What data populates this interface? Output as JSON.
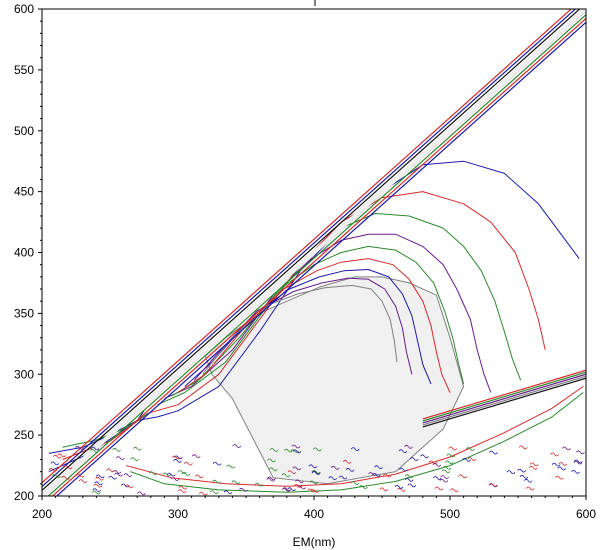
{
  "chart_data": {
    "type": "contour",
    "title": "",
    "xlabel": "EM(nm)",
    "ylabel": "",
    "xlim": [
      200,
      600
    ],
    "ylim": [
      200,
      600
    ],
    "x_ticks": [
      200,
      300,
      400,
      500,
      600
    ],
    "y_ticks": [
      200,
      250,
      300,
      350,
      400,
      450,
      500,
      550,
      600
    ],
    "grid": false,
    "legend": "none",
    "colors": {
      "background": "#ffffff",
      "fill": "#f0f0f0",
      "contour_colors": [
        "#1a1aa8",
        "#d42a2a",
        "#2a8a2a",
        "#6a1a8a",
        "#808080",
        "#111111"
      ]
    },
    "features": {
      "scatter_band": {
        "from": [
          200,
          200
        ],
        "to": [
          600,
          600
        ]
      },
      "second_order_band": {
        "from": [
          480,
          260
        ],
        "to": [
          600,
          300
        ]
      },
      "peak_region_center": [
        430,
        310
      ]
    },
    "contours": [
      {
        "color": "#1a1aa8",
        "level": 1,
        "points": [
          [
            205,
            220
          ],
          [
            235,
            235
          ],
          [
            270,
            262
          ],
          [
            285,
            265
          ],
          [
            300,
            270
          ],
          [
            330,
            290
          ],
          [
            360,
            335
          ],
          [
            390,
            385
          ],
          [
            420,
            420
          ],
          [
            450,
            450
          ],
          [
            480,
            472
          ],
          [
            510,
            475
          ],
          [
            540,
            465
          ],
          [
            565,
            440
          ],
          [
            585,
            410
          ],
          [
            595,
            395
          ]
        ]
      },
      {
        "color": "#d42a2a",
        "level": 2,
        "points": [
          [
            215,
            230
          ],
          [
            250,
            245
          ],
          [
            278,
            268
          ],
          [
            300,
            275
          ],
          [
            330,
            300
          ],
          [
            360,
            345
          ],
          [
            390,
            390
          ],
          [
            420,
            425
          ],
          [
            450,
            445
          ],
          [
            480,
            450
          ],
          [
            510,
            440
          ],
          [
            530,
            425
          ],
          [
            548,
            400
          ],
          [
            558,
            370
          ],
          [
            565,
            345
          ],
          [
            570,
            320
          ]
        ]
      },
      {
        "color": "#2a8a2a",
        "level": 3,
        "points": [
          [
            285,
            275
          ],
          [
            305,
            285
          ],
          [
            335,
            310
          ],
          [
            365,
            355
          ],
          [
            395,
            395
          ],
          [
            420,
            420
          ],
          [
            445,
            432
          ],
          [
            470,
            430
          ],
          [
            495,
            420
          ],
          [
            510,
            405
          ],
          [
            523,
            385
          ],
          [
            533,
            360
          ],
          [
            540,
            335
          ],
          [
            546,
            312
          ],
          [
            552,
            295
          ]
        ]
      },
      {
        "color": "#6a1a8a",
        "level": 4,
        "points": [
          [
            290,
            280
          ],
          [
            310,
            290
          ],
          [
            340,
            320
          ],
          [
            370,
            365
          ],
          [
            398,
            395
          ],
          [
            420,
            410
          ],
          [
            440,
            415
          ],
          [
            460,
            415
          ],
          [
            480,
            405
          ],
          [
            495,
            390
          ],
          [
            505,
            370
          ],
          [
            515,
            345
          ],
          [
            520,
            320
          ],
          [
            525,
            300
          ],
          [
            530,
            285
          ]
        ]
      },
      {
        "color": "#2a8a2a",
        "level": 5,
        "points": [
          [
            295,
            282
          ],
          [
            315,
            295
          ],
          [
            345,
            330
          ],
          [
            375,
            370
          ],
          [
            400,
            390
          ],
          [
            420,
            400
          ],
          [
            440,
            405
          ],
          [
            460,
            402
          ],
          [
            475,
            392
          ],
          [
            488,
            375
          ],
          [
            496,
            352
          ],
          [
            502,
            330
          ],
          [
            506,
            310
          ],
          [
            510,
            292
          ]
        ]
      },
      {
        "color": "#d42a2a",
        "level": 6,
        "points": [
          [
            300,
            285
          ],
          [
            320,
            300
          ],
          [
            350,
            340
          ],
          [
            378,
            370
          ],
          [
            402,
            385
          ],
          [
            420,
            392
          ],
          [
            440,
            395
          ],
          [
            458,
            390
          ],
          [
            470,
            378
          ],
          [
            480,
            360
          ],
          [
            486,
            340
          ],
          [
            490,
            318
          ],
          [
            494,
            300
          ],
          [
            500,
            285
          ]
        ]
      },
      {
        "color": "#1a1aa8",
        "level": 7,
        "points": [
          [
            305,
            290
          ],
          [
            325,
            310
          ],
          [
            355,
            348
          ],
          [
            382,
            370
          ],
          [
            404,
            380
          ],
          [
            422,
            385
          ],
          [
            440,
            386
          ],
          [
            455,
            380
          ],
          [
            465,
            366
          ],
          [
            472,
            348
          ],
          [
            476,
            328
          ],
          [
            480,
            308
          ],
          [
            486,
            292
          ]
        ]
      },
      {
        "color": "#6a1a8a",
        "level": 8,
        "points": [
          [
            312,
            295
          ],
          [
            330,
            318
          ],
          [
            358,
            352
          ],
          [
            385,
            368
          ],
          [
            406,
            375
          ],
          [
            425,
            379
          ],
          [
            440,
            378
          ],
          [
            452,
            370
          ],
          [
            460,
            356
          ],
          [
            465,
            338
          ],
          [
            468,
            318
          ],
          [
            472,
            300
          ]
        ]
      },
      {
        "color": "#808080",
        "level": 9,
        "points": [
          [
            318,
            300
          ],
          [
            336,
            325
          ],
          [
            362,
            355
          ],
          [
            388,
            366
          ],
          [
            408,
            371
          ],
          [
            428,
            373
          ],
          [
            442,
            370
          ],
          [
            450,
            360
          ],
          [
            456,
            345
          ],
          [
            459,
            328
          ],
          [
            461,
            310
          ]
        ]
      },
      {
        "color": "#2a8a2a",
        "level": 10,
        "points": [
          [
            265,
            220
          ],
          [
            290,
            210
          ],
          [
            330,
            205
          ],
          [
            380,
            203
          ],
          [
            420,
            205
          ],
          [
            460,
            212
          ],
          [
            500,
            225
          ],
          [
            540,
            245
          ],
          [
            575,
            265
          ],
          [
            598,
            285
          ]
        ]
      },
      {
        "color": "#d42a2a",
        "level": 11,
        "points": [
          [
            262,
            225
          ],
          [
            295,
            215
          ],
          [
            335,
            210
          ],
          [
            380,
            208
          ],
          [
            420,
            210
          ],
          [
            460,
            218
          ],
          [
            500,
            232
          ],
          [
            540,
            252
          ],
          [
            575,
            272
          ],
          [
            598,
            290
          ]
        ]
      },
      {
        "color": "#1a1aa8",
        "level": 12,
        "points": [
          [
            205,
            235
          ],
          [
            230,
            240
          ],
          [
            250,
            250
          ],
          [
            270,
            262
          ],
          [
            275,
            270
          ]
        ]
      },
      {
        "color": "#2a8a2a",
        "level": 13,
        "points": [
          [
            215,
            240
          ],
          [
            240,
            246
          ],
          [
            262,
            256
          ],
          [
            278,
            268
          ]
        ]
      }
    ]
  }
}
